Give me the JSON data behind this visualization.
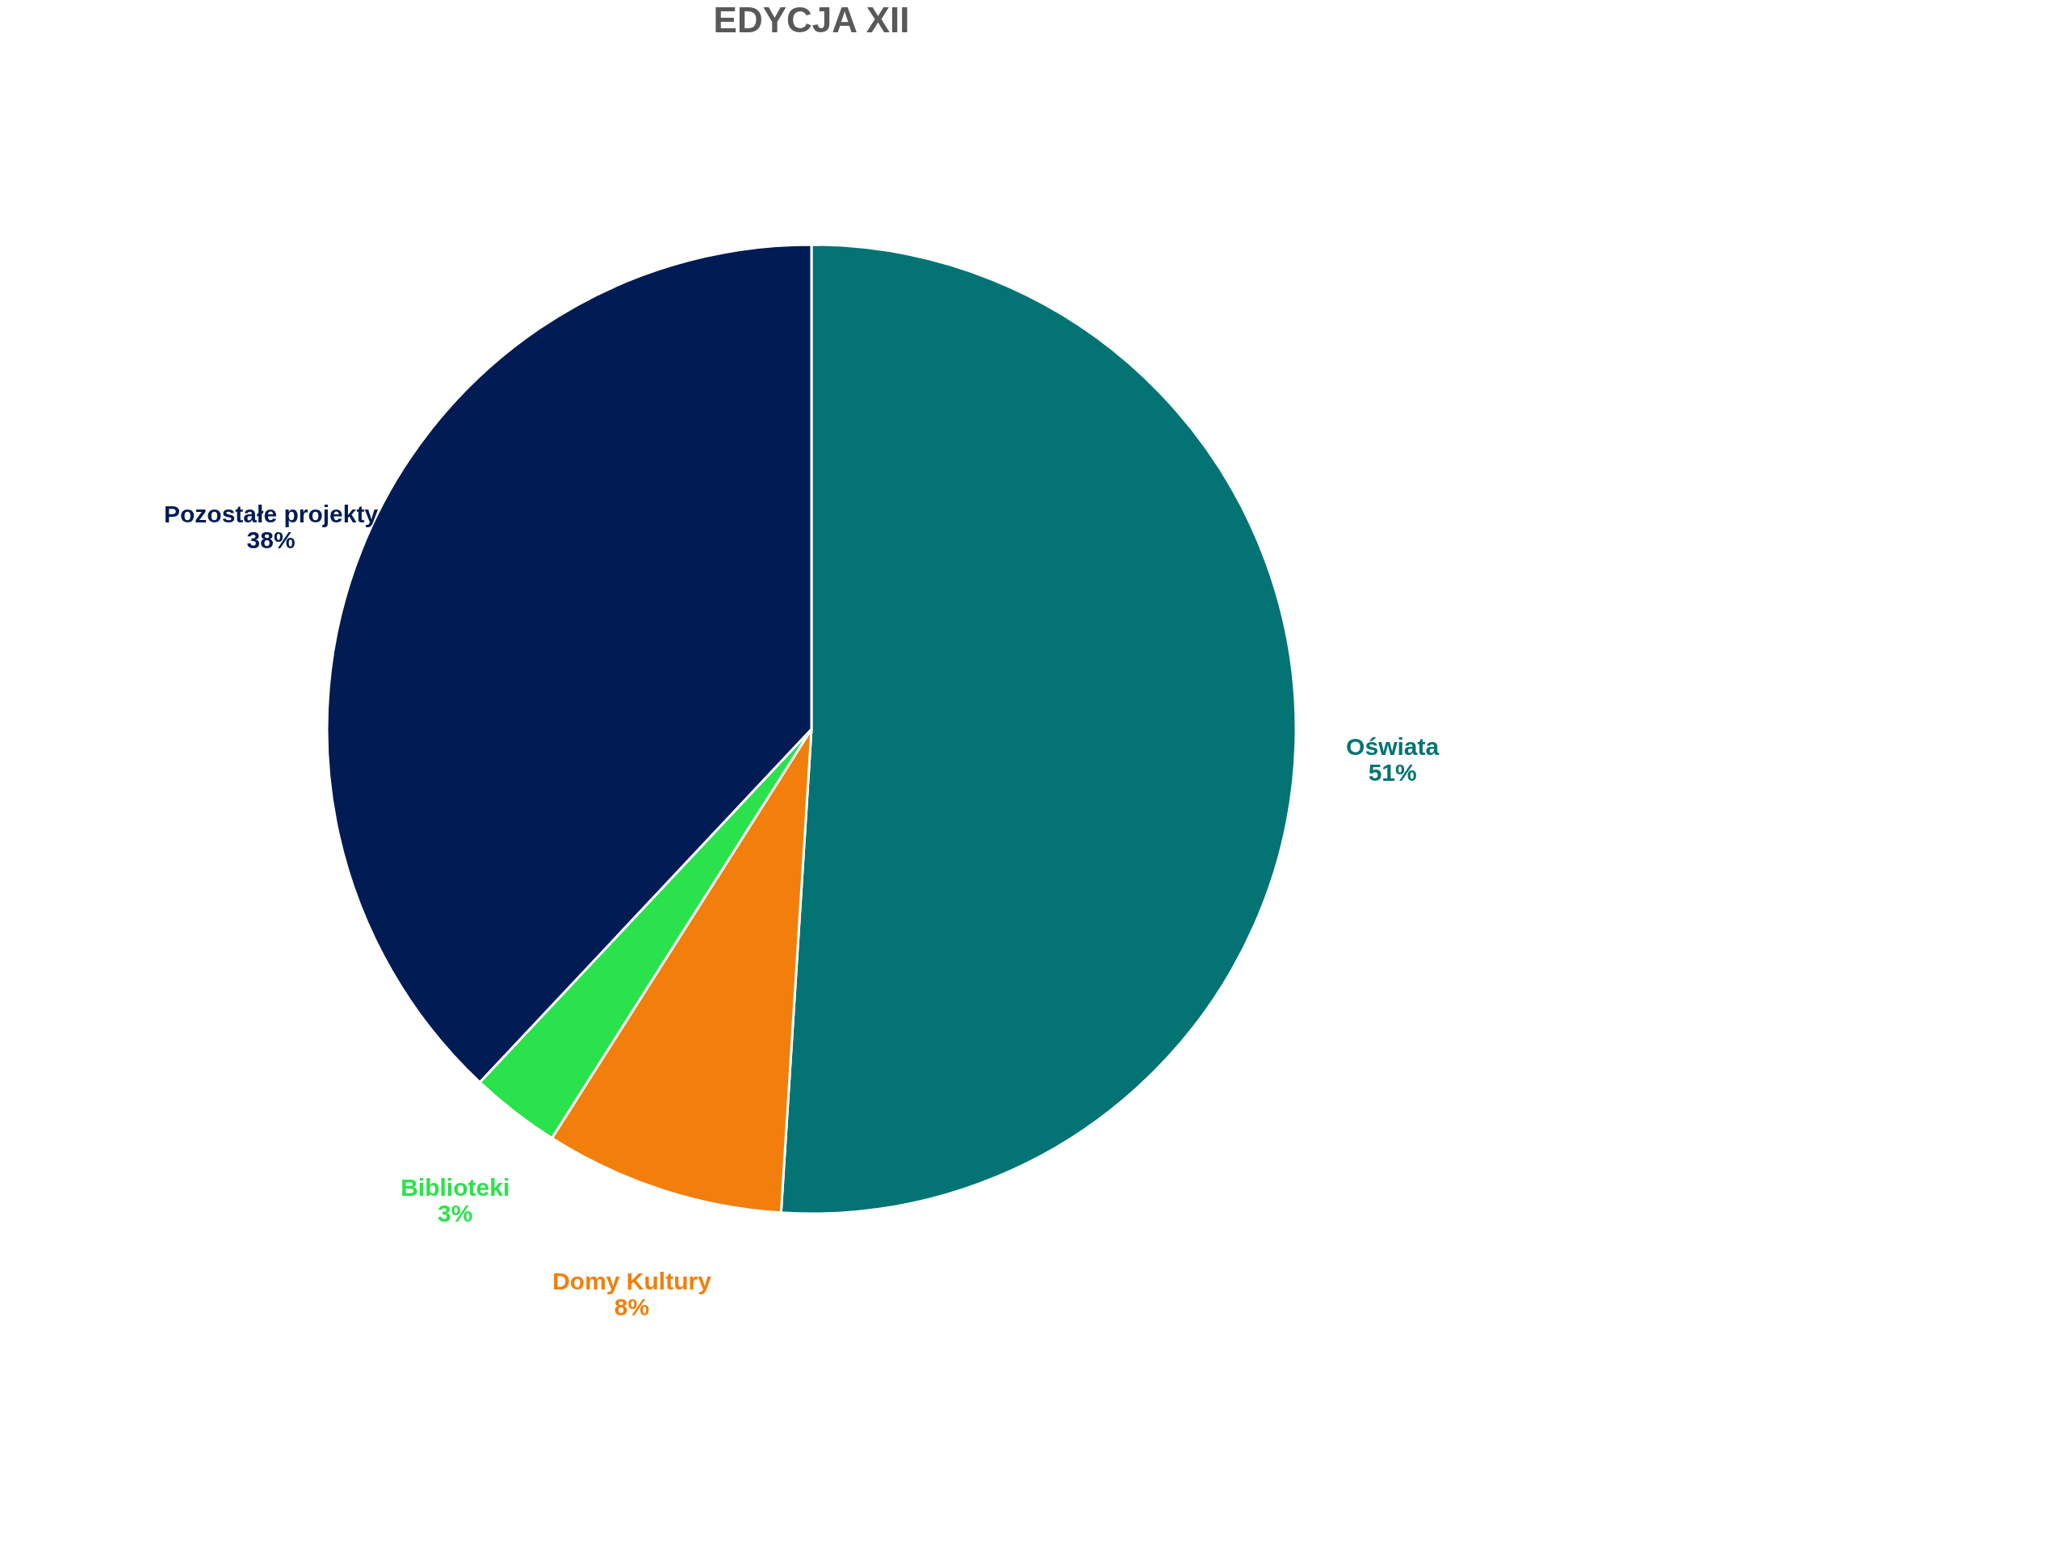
{
  "chart_data": {
    "type": "pie",
    "title": "EDYCJA XII",
    "categories": [
      "Oświata",
      "Domy Kultury",
      "Biblioteki",
      "Pozostałe projekty"
    ],
    "values": [
      51,
      8,
      3,
      38
    ],
    "value_labels": [
      "51%",
      "8%",
      "3%",
      "38%"
    ],
    "colors": [
      "#037373",
      "#f27f0c",
      "#2ae24c",
      "#011c55"
    ],
    "legend": false
  }
}
